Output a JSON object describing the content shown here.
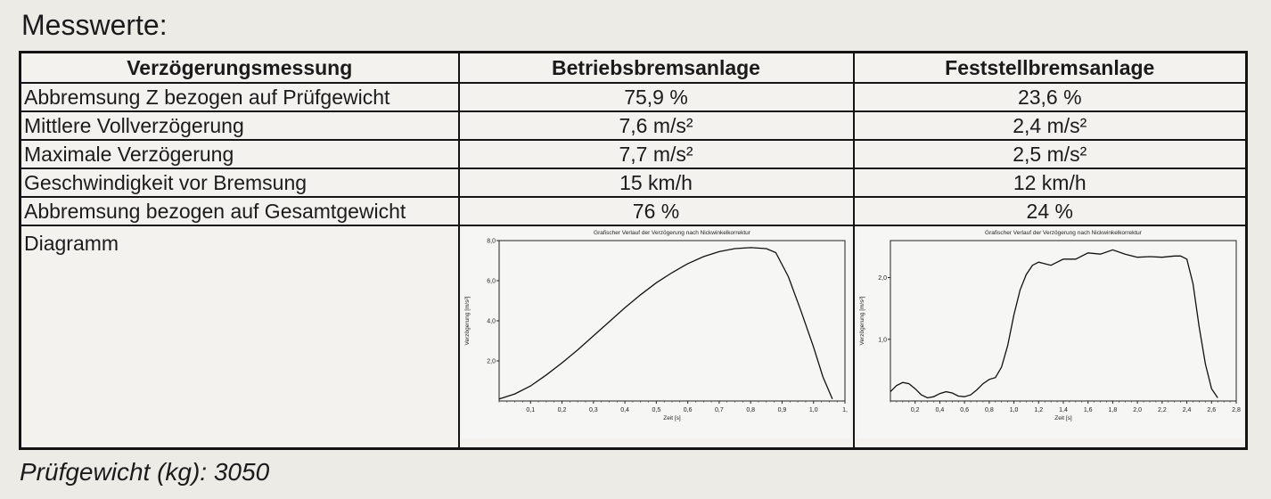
{
  "heading": "Messwerte:",
  "table": {
    "headers": [
      "Verzögerungsmessung",
      "Betriebsbremsanlage",
      "Feststellbremsanlage"
    ],
    "rows": [
      {
        "label": "Abbremsung Z bezogen auf Prüfgewicht",
        "service": "75,9 %",
        "parking": "23,6 %"
      },
      {
        "label": "Mittlere Vollverzögerung",
        "service": "7,6 m/s²",
        "parking": "2,4 m/s²"
      },
      {
        "label": "Maximale Verzögerung",
        "service": "7,7 m/s²",
        "parking": "2,5 m/s²"
      },
      {
        "label": "Geschwindigkeit vor Bremsung",
        "service": "15 km/h",
        "parking": "12 km/h"
      },
      {
        "label": "Abbremsung bezogen auf Gesamtgewicht",
        "service": "76 %",
        "parking": "24 %"
      }
    ],
    "diagram_label": "Diagramm"
  },
  "footer": "Prüfgewicht (kg): 3050",
  "chart_data": [
    {
      "type": "line",
      "title": "Grafischer Verlauf der Verzögerung nach Nickwinkelkorrektur",
      "xlabel": "Zeit [s]",
      "ylabel": "Verzögerung [m/s²]",
      "xlim": [
        0,
        1.1
      ],
      "ylim": [
        0,
        8
      ],
      "x_ticks": [
        "0,1",
        "0,2",
        "0,3",
        "0,4",
        "0,5",
        "0,6",
        "0,7",
        "0,8",
        "0,9",
        "1,0",
        "1,"
      ],
      "x_tick_values": [
        0.1,
        0.2,
        0.3,
        0.4,
        0.5,
        0.6,
        0.7,
        0.8,
        0.9,
        1.0,
        1.1
      ],
      "y_ticks": [
        "2,0",
        "4,0",
        "6,0",
        "8,0"
      ],
      "y_tick_values": [
        2,
        4,
        6,
        8
      ],
      "series": [
        {
          "x": [
            0,
            0.05,
            0.1,
            0.15,
            0.2,
            0.25,
            0.3,
            0.35,
            0.4,
            0.45,
            0.5,
            0.55,
            0.6,
            0.65,
            0.7,
            0.75,
            0.8,
            0.85,
            0.88,
            0.92,
            0.96,
            1.0,
            1.03,
            1.06
          ],
          "y": [
            0.1,
            0.35,
            0.75,
            1.3,
            1.9,
            2.55,
            3.25,
            3.95,
            4.65,
            5.3,
            5.9,
            6.4,
            6.85,
            7.2,
            7.45,
            7.6,
            7.65,
            7.6,
            7.4,
            6.2,
            4.5,
            2.7,
            1.2,
            0.1
          ]
        }
      ]
    },
    {
      "type": "line",
      "title": "Grafischer Verlauf der Verzögerung nach Nickwinkelkorrektur",
      "xlabel": "Zeit [s]",
      "ylabel": "Verzögerung [m/s²]",
      "xlim": [
        0,
        2.8
      ],
      "ylim": [
        0,
        2.6
      ],
      "x_ticks": [
        "0,2",
        "0,4",
        "0,6",
        "0,8",
        "1,0",
        "1,2",
        "1,4",
        "1,6",
        "1,8",
        "2,0",
        "2,2",
        "2,4",
        "2,6",
        "2,8"
      ],
      "x_tick_values": [
        0.2,
        0.4,
        0.6,
        0.8,
        1.0,
        1.2,
        1.4,
        1.6,
        1.8,
        2.0,
        2.2,
        2.4,
        2.6,
        2.8
      ],
      "y_ticks": [
        "1,0",
        "2,0"
      ],
      "y_tick_values": [
        1,
        2
      ],
      "series": [
        {
          "x": [
            0,
            0.05,
            0.1,
            0.15,
            0.2,
            0.25,
            0.3,
            0.35,
            0.4,
            0.45,
            0.5,
            0.55,
            0.6,
            0.65,
            0.7,
            0.75,
            0.8,
            0.85,
            0.9,
            0.95,
            1.0,
            1.05,
            1.1,
            1.15,
            1.2,
            1.3,
            1.4,
            1.5,
            1.6,
            1.7,
            1.8,
            1.9,
            2.0,
            2.1,
            2.2,
            2.3,
            2.35,
            2.4,
            2.45,
            2.5,
            2.55,
            2.6,
            2.65
          ],
          "y": [
            0.15,
            0.25,
            0.3,
            0.28,
            0.2,
            0.1,
            0.05,
            0.07,
            0.12,
            0.15,
            0.13,
            0.08,
            0.07,
            0.1,
            0.18,
            0.28,
            0.35,
            0.38,
            0.55,
            0.9,
            1.4,
            1.8,
            2.05,
            2.2,
            2.25,
            2.2,
            2.3,
            2.3,
            2.4,
            2.38,
            2.45,
            2.38,
            2.33,
            2.34,
            2.33,
            2.35,
            2.35,
            2.3,
            1.9,
            1.2,
            0.6,
            0.2,
            0.05
          ]
        }
      ]
    }
  ]
}
